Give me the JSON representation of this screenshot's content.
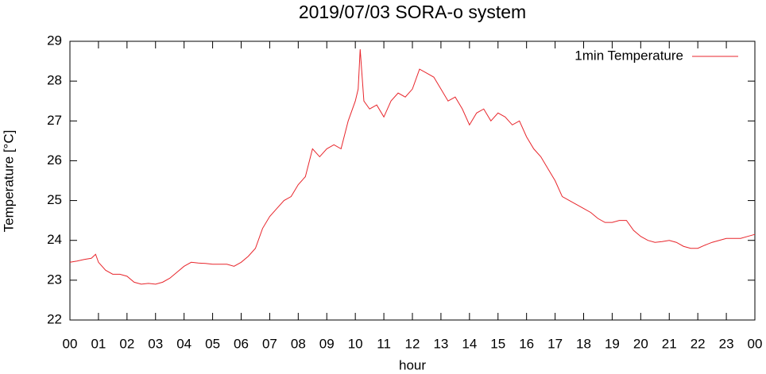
{
  "chart_data": {
    "type": "line",
    "title": "2019/07/03 SORA-o system",
    "x_label": "hour",
    "y_label": "Temperature [°C]",
    "x": [
      0,
      0.25,
      0.5,
      0.75,
      0.9,
      1,
      1.25,
      1.5,
      1.75,
      2,
      2.25,
      2.5,
      2.75,
      3,
      3.25,
      3.5,
      3.75,
      4,
      4.25,
      4.5,
      4.75,
      5,
      5.25,
      5.5,
      5.75,
      6,
      6.25,
      6.5,
      6.75,
      7,
      7.25,
      7.5,
      7.75,
      8,
      8.25,
      8.5,
      8.75,
      9,
      9.25,
      9.5,
      9.75,
      10,
      10.1,
      10.17,
      10.3,
      10.5,
      10.75,
      11,
      11.25,
      11.5,
      11.75,
      12,
      12.25,
      12.5,
      12.75,
      13,
      13.25,
      13.5,
      13.75,
      14,
      14.25,
      14.5,
      14.75,
      15,
      15.25,
      15.5,
      15.75,
      16,
      16.25,
      16.5,
      16.75,
      17,
      17.25,
      17.5,
      17.75,
      18,
      18.25,
      18.5,
      18.75,
      19,
      19.25,
      19.5,
      19.75,
      20,
      20.25,
      20.5,
      20.75,
      21,
      21.25,
      21.5,
      21.75,
      22,
      22.25,
      22.5,
      22.75,
      23,
      23.25,
      23.5,
      23.75,
      24
    ],
    "series": [
      {
        "name": "1min Temperature",
        "color": "#e8262c",
        "values": [
          23.45,
          23.48,
          23.52,
          23.55,
          23.65,
          23.45,
          23.25,
          23.15,
          23.15,
          23.1,
          22.95,
          22.9,
          22.92,
          22.9,
          22.95,
          23.05,
          23.2,
          23.35,
          23.45,
          23.43,
          23.42,
          23.4,
          23.4,
          23.4,
          23.35,
          23.45,
          23.6,
          23.8,
          24.3,
          24.6,
          24.8,
          25.0,
          25.1,
          25.4,
          25.6,
          26.3,
          26.1,
          26.3,
          26.4,
          26.3,
          27.0,
          27.5,
          27.8,
          28.8,
          27.5,
          27.3,
          27.4,
          27.1,
          27.5,
          27.7,
          27.6,
          27.8,
          28.3,
          28.2,
          28.1,
          27.8,
          27.5,
          27.6,
          27.3,
          26.9,
          27.2,
          27.3,
          27.0,
          27.2,
          27.1,
          26.9,
          27.0,
          26.6,
          26.3,
          26.1,
          25.8,
          25.5,
          25.1,
          25.0,
          24.9,
          24.8,
          24.7,
          24.55,
          24.45,
          24.45,
          24.5,
          24.5,
          24.25,
          24.1,
          24.0,
          23.95,
          23.97,
          24.0,
          23.95,
          23.85,
          23.8,
          23.8,
          23.88,
          23.95,
          24.0,
          24.05,
          24.05,
          24.05,
          24.1,
          24.15
        ]
      }
    ],
    "xlim": [
      0,
      24
    ],
    "xticks": [
      {
        "value": 0,
        "label": "00"
      },
      {
        "value": 1,
        "label": "01"
      },
      {
        "value": 2,
        "label": "02"
      },
      {
        "value": 3,
        "label": "03"
      },
      {
        "value": 4,
        "label": "04"
      },
      {
        "value": 5,
        "label": "05"
      },
      {
        "value": 6,
        "label": "06"
      },
      {
        "value": 7,
        "label": "07"
      },
      {
        "value": 8,
        "label": "08"
      },
      {
        "value": 9,
        "label": "09"
      },
      {
        "value": 10,
        "label": "10"
      },
      {
        "value": 11,
        "label": "11"
      },
      {
        "value": 12,
        "label": "12"
      },
      {
        "value": 13,
        "label": "13"
      },
      {
        "value": 14,
        "label": "14"
      },
      {
        "value": 15,
        "label": "15"
      },
      {
        "value": 16,
        "label": "16"
      },
      {
        "value": 17,
        "label": "17"
      },
      {
        "value": 18,
        "label": "18"
      },
      {
        "value": 19,
        "label": "19"
      },
      {
        "value": 20,
        "label": "20"
      },
      {
        "value": 21,
        "label": "21"
      },
      {
        "value": 22,
        "label": "22"
      },
      {
        "value": 23,
        "label": "23"
      },
      {
        "value": 24,
        "label": "00"
      }
    ],
    "ylim": [
      22,
      29
    ],
    "yticks": [
      22,
      23,
      24,
      25,
      26,
      27,
      28,
      29
    ],
    "legend": "upper right"
  }
}
